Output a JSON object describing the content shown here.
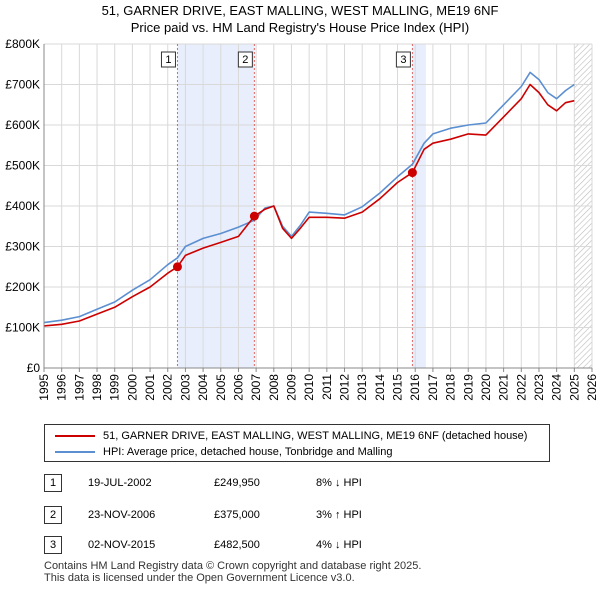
{
  "title_line1": "51, GARNER DRIVE, EAST MALLING, WEST MALLING, ME19 6NF",
  "title_line2": "Price paid vs. HM Land Registry's House Price Index (HPI)",
  "chart_data": {
    "type": "line",
    "title": "51, GARNER DRIVE, EAST MALLING, WEST MALLING, ME19 6NF — Price paid vs. HM Land Registry's House Price Index (HPI)",
    "xlim": [
      1995,
      2026
    ],
    "ylim": [
      0,
      800000
    ],
    "x_ticks": [
      "1995",
      "1996",
      "1997",
      "1998",
      "1999",
      "2000",
      "2001",
      "2002",
      "2003",
      "2004",
      "2005",
      "2006",
      "2007",
      "2008",
      "2009",
      "2010",
      "2011",
      "2012",
      "2013",
      "2014",
      "2015",
      "2016",
      "2017",
      "2018",
      "2019",
      "2020",
      "2021",
      "2022",
      "2023",
      "2024",
      "2025",
      "2026"
    ],
    "y_ticks": [
      {
        "value": 0,
        "label": "£0"
      },
      {
        "value": 100000,
        "label": "£100K"
      },
      {
        "value": 200000,
        "label": "£200K"
      },
      {
        "value": 300000,
        "label": "£300K"
      },
      {
        "value": 400000,
        "label": "£400K"
      },
      {
        "value": 500000,
        "label": "£500K"
      },
      {
        "value": 600000,
        "label": "£600K"
      },
      {
        "value": 700000,
        "label": "£700K"
      },
      {
        "value": 800000,
        "label": "£800K"
      }
    ],
    "grid": true,
    "shaded_periods": [
      [
        2002.55,
        2006.9
      ],
      [
        2015.84,
        2016.6
      ]
    ],
    "hatched_from": 2025.0,
    "series": [
      {
        "name": "51, GARNER DRIVE, EAST MALLING, WEST MALLING, ME19 6NF (detached house)",
        "color": "#cc0000",
        "x": [
          1995.0,
          1996.0,
          1997.0,
          1998.0,
          1999.0,
          2000.0,
          2001.0,
          2002.0,
          2002.55,
          2003.0,
          2004.0,
          2005.0,
          2006.0,
          2006.9,
          2007.5,
          2008.0,
          2008.5,
          2009.0,
          2009.5,
          2010.0,
          2011.0,
          2012.0,
          2013.0,
          2014.0,
          2015.0,
          2015.84,
          2016.5,
          2017.0,
          2018.0,
          2019.0,
          2020.0,
          2021.0,
          2022.0,
          2022.5,
          2023.0,
          2023.5,
          2024.0,
          2024.5,
          2025.0
        ],
        "y": [
          104000,
          108000,
          116000,
          133000,
          150000,
          176000,
          200000,
          234000,
          249950,
          278000,
          296000,
          310000,
          325000,
          375000,
          392000,
          400000,
          345000,
          320000,
          345000,
          372000,
          372000,
          370000,
          385000,
          418000,
          458000,
          482500,
          540000,
          555000,
          565000,
          578000,
          575000,
          620000,
          665000,
          700000,
          680000,
          650000,
          635000,
          655000,
          660000
        ]
      },
      {
        "name": "HPI: Average price, detached house, Tonbridge and Malling",
        "color": "#5b8fd1",
        "x": [
          1995.0,
          1996.0,
          1997.0,
          1998.0,
          1999.0,
          2000.0,
          2001.0,
          2002.0,
          2002.55,
          2003.0,
          2004.0,
          2005.0,
          2006.0,
          2006.9,
          2007.5,
          2008.0,
          2008.5,
          2009.0,
          2009.5,
          2010.0,
          2011.0,
          2012.0,
          2013.0,
          2014.0,
          2015.0,
          2015.84,
          2016.5,
          2017.0,
          2018.0,
          2019.0,
          2020.0,
          2021.0,
          2022.0,
          2022.5,
          2023.0,
          2023.5,
          2024.0,
          2024.5,
          2025.0
        ],
        "y": [
          112000,
          118000,
          127000,
          145000,
          163000,
          192000,
          218000,
          255000,
          272000,
          300000,
          320000,
          332000,
          348000,
          365000,
          395000,
          400000,
          350000,
          325000,
          352000,
          385000,
          382000,
          378000,
          398000,
          432000,
          472000,
          503000,
          555000,
          578000,
          592000,
          600000,
          605000,
          650000,
          695000,
          730000,
          712000,
          680000,
          665000,
          685000,
          700000
        ]
      }
    ],
    "annotations": [
      {
        "label": "1",
        "x": 2002.55,
        "y": 249950
      },
      {
        "label": "2",
        "x": 2006.9,
        "y": 375000
      },
      {
        "label": "3",
        "x": 2015.84,
        "y": 482500
      }
    ]
  },
  "legend": {
    "property": {
      "label": "51, GARNER DRIVE, EAST MALLING, WEST MALLING, ME19 6NF (detached house)",
      "color": "#cc0000"
    },
    "hpi": {
      "label": "HPI: Average price, detached house, Tonbridge and Malling",
      "color": "#5b8fd1"
    }
  },
  "sales": [
    {
      "num": "1",
      "date": "19-JUL-2002",
      "price": "£249,950",
      "hpi": "8% ↓ HPI"
    },
    {
      "num": "2",
      "date": "23-NOV-2006",
      "price": "£375,000",
      "hpi": "3% ↑ HPI"
    },
    {
      "num": "3",
      "date": "02-NOV-2015",
      "price": "£482,500",
      "hpi": "4% ↓ HPI"
    }
  ],
  "footer": {
    "line1": "Contains HM Land Registry data © Crown copyright and database right 2025.",
    "line2": "This data is licensed under the Open Government Licence v3.0."
  }
}
